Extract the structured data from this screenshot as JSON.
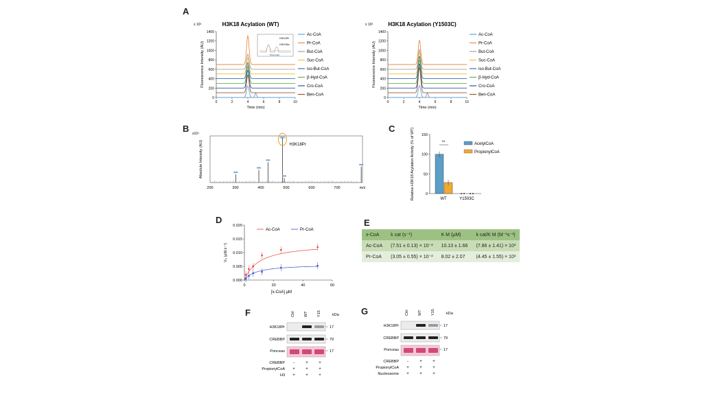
{
  "panels": {
    "A": "A",
    "B": "B",
    "C": "C",
    "D": "D",
    "E": "E",
    "F": "F",
    "G": "G"
  },
  "chrom": {
    "xlabel": "Time (min)",
    "ylabel": "Fluorescence Intensity (AU)",
    "scale": "x 10³",
    "yticks": [
      "0",
      "200",
      "400",
      "600",
      "800",
      "1000",
      "1200",
      "1400"
    ],
    "xticks": [
      "0",
      "2",
      "4",
      "6",
      "8",
      "10"
    ],
    "legend": [
      "Ac-CoA",
      "Pr-CoA",
      "But-CoA",
      "Suc-CoA",
      "iso-But-CoA",
      "β-Hyd-CoA",
      "Cro-CoA",
      "Ben-CoA"
    ],
    "colors": [
      "#5ba3d9",
      "#f08a3c",
      "#a0a0a0",
      "#f2c12e",
      "#3d6fb6",
      "#6aaf48",
      "#2a58a0",
      "#a0522d"
    ],
    "inset_a": "H3K18Pr",
    "inset_b": "H3K18Ac",
    "inset_x": "Time (min)"
  },
  "chart_data": [
    {
      "type": "line",
      "title": "H3K18 Acylation (WT)",
      "xlabel": "Time (min)",
      "ylabel": "Fluorescence Intensity (AU)",
      "xlim": [
        0,
        10
      ],
      "ylim": [
        0,
        1400
      ],
      "series": [
        {
          "name": "Ac-CoA",
          "baseline": 0,
          "peak_x": 4.0,
          "peak_height": 250
        },
        {
          "name": "Pr-CoA",
          "baseline": 700,
          "peak_x": 4.0,
          "peak_height": 620
        },
        {
          "name": "But-CoA",
          "baseline": 600,
          "peak_x": 4.0,
          "peak_height": 320
        },
        {
          "name": "Suc-CoA",
          "baseline": 500,
          "peak_x": 4.0,
          "peak_height": 340
        },
        {
          "name": "iso-But-CoA",
          "baseline": 400,
          "peak_x": 4.0,
          "peak_height": 340
        },
        {
          "name": "β-Hyd-CoA",
          "baseline": 300,
          "peak_x": 4.0,
          "peak_height": 360
        },
        {
          "name": "Cro-CoA",
          "baseline": 200,
          "peak_x": 4.0,
          "peak_height": 380
        },
        {
          "name": "Ben-CoA",
          "baseline": 100,
          "peak_x": 4.0,
          "peak_height": 380
        }
      ]
    },
    {
      "type": "line",
      "title": "H3K18 Acylation (Y1503C)",
      "xlabel": "Time (min)",
      "ylabel": "Fluorescence Intensity (AU)",
      "xlim": [
        0,
        10
      ],
      "ylim": [
        0,
        1400
      ],
      "series": [
        {
          "name": "Ac-CoA",
          "baseline": 0,
          "peak_x": 4.0,
          "peak_height": 250
        },
        {
          "name": "Pr-CoA",
          "baseline": 700,
          "peak_x": 4.0,
          "peak_height": 520
        },
        {
          "name": "But-CoA",
          "baseline": 600,
          "peak_x": 4.0,
          "peak_height": 420
        },
        {
          "name": "Suc-CoA",
          "baseline": 500,
          "peak_x": 4.0,
          "peak_height": 460
        },
        {
          "name": "iso-But-CoA",
          "baseline": 400,
          "peak_x": 4.0,
          "peak_height": 480
        },
        {
          "name": "β-Hyd-CoA",
          "baseline": 300,
          "peak_x": 4.0,
          "peak_height": 500
        },
        {
          "name": "Cro-CoA",
          "baseline": 200,
          "peak_x": 4.0,
          "peak_height": 520
        },
        {
          "name": "Ben-CoA",
          "baseline": 100,
          "peak_x": 4.0,
          "peak_height": 540
        }
      ]
    },
    {
      "type": "bar",
      "title": "",
      "xlabel": "m/z",
      "ylabel": "Absolute Intensity (AU)",
      "scale": "x10⁴",
      "xlim": [
        200,
        800
      ],
      "xticks": [
        "200",
        "300",
        "400",
        "500",
        "600",
        "700",
        "m/z"
      ],
      "annotation": "H3K18Pr",
      "peak_label": "485",
      "peaks": [
        {
          "x": 301,
          "y": 0.18
        },
        {
          "x": 392,
          "y": 0.28
        },
        {
          "x": 428,
          "y": 0.45
        },
        {
          "x": 485,
          "y": 1.0
        },
        {
          "x": 492,
          "y": 0.1
        },
        {
          "x": 795,
          "y": 0.35
        }
      ]
    },
    {
      "type": "bar",
      "title": "",
      "ylabel": "Relative H3K18 Acylation Activity (% of WT)",
      "ylim": [
        0,
        150
      ],
      "yticks": [
        "0",
        "50",
        "100",
        "150"
      ],
      "categories": [
        "WT",
        "Y1503C"
      ],
      "series": [
        {
          "name": "AcetylCoA",
          "values": [
            100,
            0
          ]
        },
        {
          "name": "PropionylCoA",
          "values": [
            28,
            0
          ]
        }
      ],
      "colors": [
        "#5b9ec6",
        "#f3a830"
      ],
      "significance": "**"
    },
    {
      "type": "scatter",
      "title": "",
      "xlabel": "[x-CoA] μM",
      "ylabel": "V₀ (μM.s⁻¹)",
      "xlim": [
        0,
        60
      ],
      "ylim": [
        0,
        0.02
      ],
      "xticks": [
        "0",
        "20",
        "40",
        "60"
      ],
      "yticks": [
        "0.000",
        "0.005",
        "0.010",
        "0.015",
        "0.020"
      ],
      "series": [
        {
          "name": "Ac-CoA",
          "x": [
            1,
            3,
            6,
            12,
            25,
            50
          ],
          "y": [
            0.002,
            0.004,
            0.005,
            0.009,
            0.011,
            0.012
          ]
        },
        {
          "name": "Pr-CoA",
          "x": [
            1,
            3,
            6,
            12,
            25,
            50
          ],
          "y": [
            0.0005,
            0.0015,
            0.0025,
            0.003,
            0.0045,
            0.0052
          ]
        }
      ]
    }
  ],
  "table": {
    "headers": [
      "x-CoA",
      "k cat (s⁻¹)",
      "K M (μM)",
      "k cat/K M (M⁻¹s⁻¹)"
    ],
    "rows": [
      [
        "Ac-CoA",
        "(7.51 ± 0.13) × 10⁻²",
        "10.13 ± 1.66",
        "(7.86 ± 1.41) × 10³"
      ],
      [
        "Pr-CoA",
        "(3.05 ± 0.55) × 10⁻²",
        "8.02 ± 2.07",
        "(4.45 ± 1.55) × 10³"
      ]
    ]
  },
  "blotF": {
    "lanes": [
      "Ctrl",
      "WT",
      "Y1503C"
    ],
    "kda": "kDa",
    "rows": [
      "H3K18Pr",
      "CREBBP",
      "Ponceau"
    ],
    "mw": [
      "17",
      "79",
      "17"
    ],
    "conds": [
      {
        "label": "CREBBP",
        "marks": [
          "-",
          "+",
          "+"
        ]
      },
      {
        "label": "PropionylCoA",
        "marks": [
          "+",
          "+",
          "+"
        ]
      },
      {
        "label": "H3",
        "marks": [
          "+",
          "+",
          "+"
        ]
      }
    ]
  },
  "blotG": {
    "lanes": [
      "Ctrl",
      "WT",
      "Y1503C"
    ],
    "kda": "kDa",
    "rows": [
      "H3K18Pr",
      "CREBBP",
      "Ponceau"
    ],
    "mw": [
      "17",
      "79",
      "17"
    ],
    "conds": [
      {
        "label": "CREBBP",
        "marks": [
          "-",
          "+",
          "+"
        ]
      },
      {
        "label": "PropionylCoA",
        "marks": [
          "+",
          "+",
          "+"
        ]
      },
      {
        "label": "Nucleosome",
        "marks": [
          "+",
          "+",
          "+"
        ]
      }
    ]
  }
}
